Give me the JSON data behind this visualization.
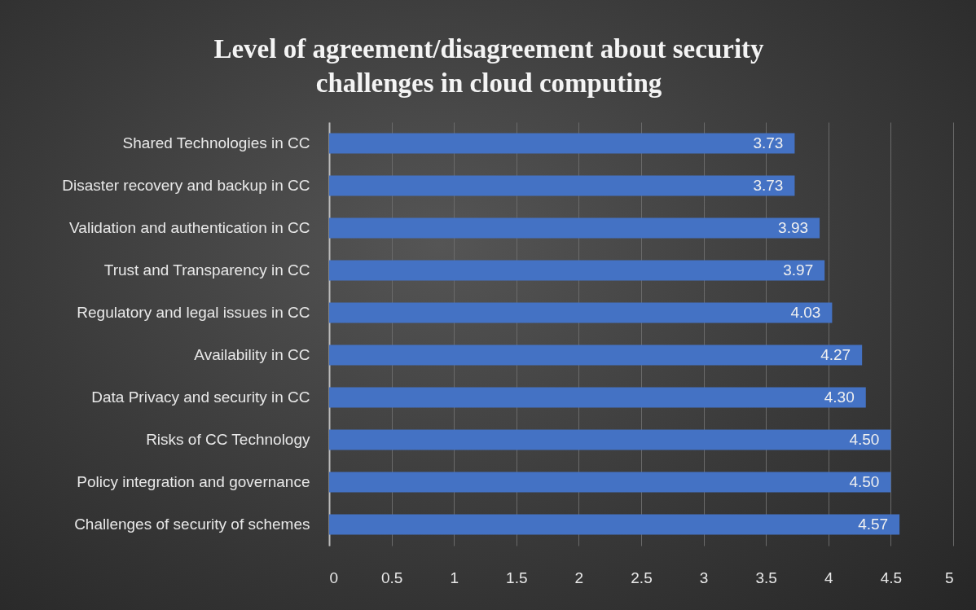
{
  "chart_data": {
    "type": "bar",
    "orientation": "horizontal",
    "title": "Level of agreement/disagreement about security challenges in cloud computing",
    "categories": [
      "Shared Technologies in CC",
      "Disaster recovery and backup in CC",
      "Validation and authentication in CC",
      "Trust and Transparency in CC",
      "Regulatory and legal issues in CC",
      "Availability in CC",
      "Data Privacy and security in CC",
      "Risks of CC Technology",
      "Policy integration and governance",
      "Challenges of security of schemes"
    ],
    "values": [
      3.73,
      3.73,
      3.93,
      3.97,
      4.03,
      4.27,
      4.3,
      4.5,
      4.5,
      4.57
    ],
    "value_labels": [
      "3.73",
      "3.73",
      "3.93",
      "3.97",
      "4.03",
      "4.27",
      "4.30",
      "4.50",
      "4.50",
      "4.57"
    ],
    "color": "#4472c4",
    "xlim": [
      0,
      5
    ],
    "xticks": [
      0,
      0.5,
      1,
      1.5,
      2,
      2.5,
      3,
      3.5,
      4,
      4.5,
      5
    ],
    "grid": "x"
  }
}
